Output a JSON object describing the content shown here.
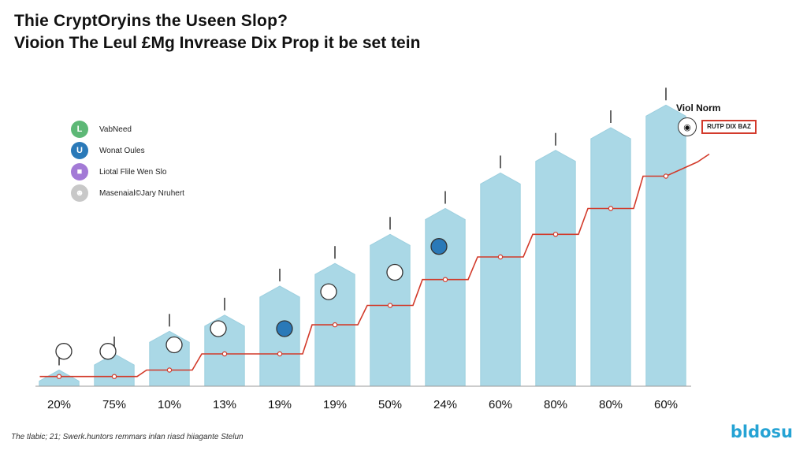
{
  "header": {
    "title": "Thie CryptOryins the Useen Slop?",
    "subtitle": "Vioion The Leul £Mg Invrease Dix Prop it be set tein"
  },
  "legend": {
    "items": [
      {
        "label": "VabNeed",
        "color": "#5db876",
        "icon": "L"
      },
      {
        "label": "Wonat Oules",
        "color": "#2a79b8",
        "icon": "U"
      },
      {
        "label": "Liotal Flile Wen Slo",
        "color": "#a37ad6",
        "icon": "■"
      },
      {
        "label": "Masenaial©Jary Nruhert",
        "color": "#c8c8c8",
        "icon": "☻"
      }
    ]
  },
  "callout": {
    "title": "Viol Norm",
    "box_text": "RUTP DIX BAZ"
  },
  "footnote": "The tlabic; 21; Swerk.huntors remmars inlan riasd hiiagante Stelun",
  "brand": "bldosu",
  "colors": {
    "bar": "#aad8e6",
    "bar_stroke": "#9ccfdf",
    "line": "#d23a2a",
    "axis": "#999999"
  },
  "chart_data": {
    "type": "bar",
    "categories": [
      "20%",
      "75%",
      "10%",
      "13%",
      "19%",
      "19%",
      "50%",
      "24%",
      "60%",
      "80%",
      "80%",
      "60%"
    ],
    "series": [
      {
        "type": "bar",
        "values": [
          5,
          10,
          17,
          22,
          31,
          38,
          47,
          55,
          66,
          73,
          80,
          87
        ]
      },
      {
        "type": "line",
        "values": [
          3,
          3,
          5,
          10,
          10,
          19,
          25,
          33,
          40,
          47,
          55,
          65
        ]
      }
    ],
    "ylim": [
      0,
      100
    ],
    "grid": false,
    "legend_position": "left",
    "xlabel": "",
    "ylabel": ""
  }
}
